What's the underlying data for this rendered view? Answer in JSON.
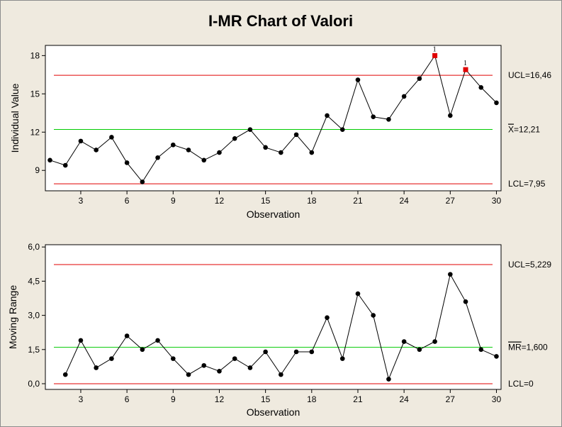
{
  "colors": {
    "background": "#efeadf",
    "plot_background": "#ffffff",
    "control_limit": "#e00000",
    "center_line": "#00cc00",
    "data_line": "#000000",
    "data_point": "#000000",
    "flagged_point": "#e00000"
  },
  "chart_data": [
    {
      "id": "individuals",
      "type": "line",
      "title": "I-MR Chart of Valori",
      "xlabel": "Observation",
      "ylabel": "Individual Value",
      "x": [
        1,
        2,
        3,
        4,
        5,
        6,
        7,
        8,
        9,
        10,
        11,
        12,
        13,
        14,
        15,
        16,
        17,
        18,
        19,
        20,
        21,
        22,
        23,
        24,
        25,
        26,
        27,
        28,
        29,
        30
      ],
      "values": [
        9.8,
        9.4,
        11.3,
        10.6,
        11.6,
        9.6,
        8.1,
        10.0,
        11.0,
        10.6,
        9.8,
        10.4,
        11.5,
        12.2,
        10.8,
        10.4,
        11.8,
        10.4,
        13.3,
        12.2,
        16.1,
        13.2,
        13.0,
        14.8,
        16.2,
        18.0,
        13.3,
        16.9,
        15.5,
        14.3
      ],
      "flagged": [
        26,
        28
      ],
      "flag_label": "1",
      "xticks": [
        3,
        6,
        9,
        12,
        15,
        18,
        21,
        24,
        27,
        30
      ],
      "xtick_labels": [
        "3",
        "6",
        "9",
        "12",
        "15",
        "18",
        "21",
        "24",
        "27",
        "30"
      ],
      "yticks": [
        9,
        12,
        15,
        18
      ],
      "ytick_labels": [
        "9",
        "12",
        "15",
        "18"
      ],
      "ylim": [
        7.4,
        18.8
      ],
      "xlim": [
        0.7,
        30.3
      ],
      "limits": {
        "ucl": 16.46,
        "ucl_label": "UCL=16,46",
        "center": 12.21,
        "center_symbol": "X",
        "center_label": "=12,21",
        "lcl": 7.95,
        "lcl_label": "LCL=7,95"
      }
    },
    {
      "id": "moving-range",
      "type": "line",
      "xlabel": "Observation",
      "ylabel": "Moving Range",
      "x": [
        2,
        3,
        4,
        5,
        6,
        7,
        8,
        9,
        10,
        11,
        12,
        13,
        14,
        15,
        16,
        17,
        18,
        19,
        20,
        21,
        22,
        23,
        24,
        25,
        26,
        27,
        28,
        29,
        30
      ],
      "values": [
        0.4,
        1.9,
        0.7,
        1.1,
        2.1,
        1.5,
        1.9,
        1.1,
        0.4,
        0.8,
        0.55,
        1.1,
        0.7,
        1.4,
        0.4,
        1.4,
        1.4,
        2.9,
        1.1,
        3.95,
        3.0,
        0.2,
        1.85,
        1.5,
        1.85,
        4.8,
        3.6,
        1.5,
        1.2
      ],
      "xticks": [
        3,
        6,
        9,
        12,
        15,
        18,
        21,
        24,
        27,
        30
      ],
      "xtick_labels": [
        "3",
        "6",
        "9",
        "12",
        "15",
        "18",
        "21",
        "24",
        "27",
        "30"
      ],
      "yticks": [
        0,
        1.5,
        3,
        4.5,
        6
      ],
      "ytick_labels": [
        "0,0",
        "1,5",
        "3,0",
        "4,5",
        "6,0"
      ],
      "ylim": [
        -0.25,
        6.1
      ],
      "xlim": [
        0.7,
        30.3
      ],
      "limits": {
        "ucl": 5.229,
        "ucl_label": "UCL=5,229",
        "center": 1.6,
        "center_symbol": "MR",
        "center_label": "=1,600",
        "lcl": 0,
        "lcl_label": "LCL=0"
      }
    }
  ]
}
